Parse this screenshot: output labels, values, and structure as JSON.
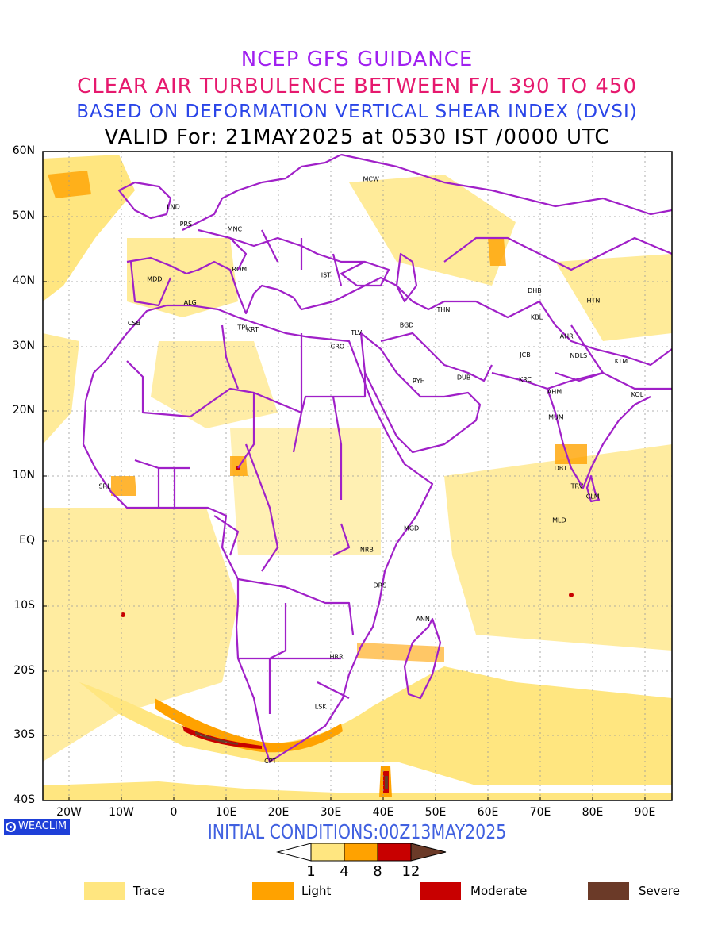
{
  "titles": {
    "line1": "NCEP GFS GUIDANCE",
    "line2": "CLEAR AIR TURBULENCE BETWEEN F/L 390 TO 450",
    "line3": "BASED ON DEFORMATION VERTICAL SHEAR INDEX (DVSI)",
    "line4": "VALID For: 21MAY2025 at 0530 IST /0000 UTC"
  },
  "axes": {
    "lat_labels": [
      "60N",
      "50N",
      "40N",
      "30N",
      "20N",
      "10N",
      "EQ",
      "10S",
      "20S",
      "30S",
      "40S"
    ],
    "lon_labels": [
      "20W",
      "10W",
      "0",
      "10E",
      "20E",
      "30E",
      "40E",
      "50E",
      "60E",
      "70E",
      "80E",
      "90E"
    ],
    "lon_range": [
      -25,
      95
    ],
    "lat_range": [
      -40,
      60
    ]
  },
  "stations": [
    {
      "name": "MCW",
      "lon": 37.6,
      "lat": 55.8
    },
    {
      "name": "LND",
      "lon": -0.1,
      "lat": 51.5
    },
    {
      "name": "PRS",
      "lon": 2.3,
      "lat": 48.9
    },
    {
      "name": "MNC",
      "lon": 11.6,
      "lat": 48.1
    },
    {
      "name": "ROM",
      "lon": 12.5,
      "lat": 41.9
    },
    {
      "name": "IST",
      "lon": 29.0,
      "lat": 41.0
    },
    {
      "name": "MDD",
      "lon": -3.7,
      "lat": 40.4
    },
    {
      "name": "ALG",
      "lon": 3.1,
      "lat": 36.8
    },
    {
      "name": "CSB",
      "lon": -7.6,
      "lat": 33.6
    },
    {
      "name": "TPL",
      "lon": 13.2,
      "lat": 32.9
    },
    {
      "name": "KRT",
      "lon": 15.0,
      "lat": 32.6
    },
    {
      "name": "CRO",
      "lon": 31.2,
      "lat": 30.0
    },
    {
      "name": "TLV",
      "lon": 34.8,
      "lat": 32.1
    },
    {
      "name": "BGD",
      "lon": 44.4,
      "lat": 33.3
    },
    {
      "name": "THN",
      "lon": 51.4,
      "lat": 35.7
    },
    {
      "name": "RYH",
      "lon": 46.7,
      "lat": 24.7
    },
    {
      "name": "DUB",
      "lon": 55.3,
      "lat": 25.2
    },
    {
      "name": "DHB",
      "lon": 68.8,
      "lat": 38.6
    },
    {
      "name": "KBL",
      "lon": 69.2,
      "lat": 34.5
    },
    {
      "name": "HTN",
      "lon": 80.0,
      "lat": 37.1
    },
    {
      "name": "AHR",
      "lon": 74.9,
      "lat": 31.6
    },
    {
      "name": "JCB",
      "lon": 67.0,
      "lat": 28.7
    },
    {
      "name": "NDLS",
      "lon": 77.2,
      "lat": 28.6
    },
    {
      "name": "KTM",
      "lon": 85.3,
      "lat": 27.7
    },
    {
      "name": "KRC",
      "lon": 67.0,
      "lat": 24.9
    },
    {
      "name": "AHM",
      "lon": 72.6,
      "lat": 23.0
    },
    {
      "name": "KOL",
      "lon": 88.4,
      "lat": 22.6
    },
    {
      "name": "MUM",
      "lon": 72.9,
      "lat": 19.1
    },
    {
      "name": "DBT",
      "lon": 73.8,
      "lat": 11.2
    },
    {
      "name": "TRV",
      "lon": 76.9,
      "lat": 8.5
    },
    {
      "name": "CLM",
      "lon": 79.9,
      "lat": 6.9
    },
    {
      "name": "MLD",
      "lon": 73.5,
      "lat": 3.2
    },
    {
      "name": "SRL",
      "lon": -13.2,
      "lat": 8.5
    },
    {
      "name": "MGD",
      "lon": 45.3,
      "lat": 2.0
    },
    {
      "name": "NRB",
      "lon": 36.8,
      "lat": -1.3
    },
    {
      "name": "DRS",
      "lon": 39.3,
      "lat": -6.8
    },
    {
      "name": "ANN",
      "lon": 47.5,
      "lat": -12.0
    },
    {
      "name": "HRR",
      "lon": 31.0,
      "lat": -17.8
    },
    {
      "name": "LSK",
      "lon": 28.0,
      "lat": -25.5
    },
    {
      "name": "CPT",
      "lon": 18.4,
      "lat": -33.9
    }
  ],
  "colorbar": {
    "ticks": [
      "1",
      "4",
      "8",
      "12"
    ],
    "colors": [
      "#ffe680",
      "#ffa200",
      "#c80000",
      "#6b3a28"
    ]
  },
  "legend": [
    {
      "label": "Trace",
      "color": "#ffe680"
    },
    {
      "label": "Light",
      "color": "#ffa200"
    },
    {
      "label": "Moderate",
      "color": "#c80000"
    },
    {
      "label": "Severe",
      "color": "#6b3a28"
    }
  ],
  "initial_conditions": "INITIAL CONDITIONS:00Z13MAY2025",
  "logo_text": "WEACLIM",
  "colors": {
    "border": "#a020c8",
    "trace": "#ffe680",
    "light": "#ffa200",
    "moderate": "#c80000",
    "severe": "#6b3a28"
  }
}
